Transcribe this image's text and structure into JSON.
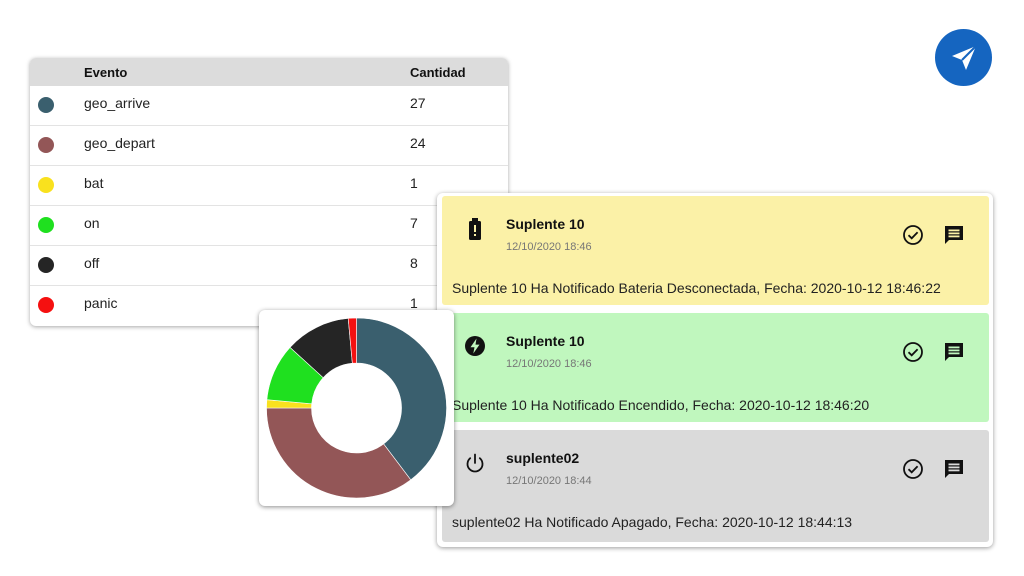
{
  "colors": {
    "notif_battery_bg": "#fbf1a7",
    "notif_power_on_bg": "#c0f7be",
    "notif_power_off_bg": "#dadada",
    "fab_bg": "#1565c0"
  },
  "events_table": {
    "headers": {
      "event": "Evento",
      "count": "Cantidad"
    },
    "rows": [
      {
        "event": "geo_arrive",
        "count": "27",
        "color": "#3a5f6e"
      },
      {
        "event": "geo_depart",
        "count": "24",
        "color": "#935657"
      },
      {
        "event": "bat",
        "count": "1",
        "color": "#f9e11e"
      },
      {
        "event": "on",
        "count": "7",
        "color": "#1fe01f"
      },
      {
        "event": "off",
        "count": "8",
        "color": "#252525"
      },
      {
        "event": "panic",
        "count": "1",
        "color": "#f51010"
      }
    ]
  },
  "chart_data": {
    "type": "pie",
    "donut": true,
    "labels": [
      "geo_arrive",
      "geo_depart",
      "bat",
      "on",
      "off",
      "panic"
    ],
    "values": [
      27,
      24,
      1,
      7,
      8,
      1
    ],
    "colors": [
      "#3a5f6e",
      "#935657",
      "#f9e11e",
      "#1fe01f",
      "#252525",
      "#f51010"
    ],
    "start_angle_deg": 0,
    "legend": "none",
    "title": ""
  },
  "notifications": [
    {
      "icon": "battery-alert-icon",
      "title": "Suplente 10",
      "time": "12/10/2020 18:46",
      "text": "Suplente 10 Ha Notificado Bateria Desconectada, Fecha: 2020-10-12 18:46:22"
    },
    {
      "icon": "power-on-bolt-icon",
      "title": "Suplente 10",
      "time": "12/10/2020 18:46",
      "text": "Suplente 10 Ha Notificado Encendido, Fecha: 2020-10-12 18:46:20"
    },
    {
      "icon": "power-off-icon",
      "title": "suplente02",
      "time": "12/10/2020 18:44",
      "text": "suplente02 Ha Notificado Apagado, Fecha: 2020-10-12 18:44:13"
    }
  ],
  "fab": {
    "icon": "send-icon"
  }
}
